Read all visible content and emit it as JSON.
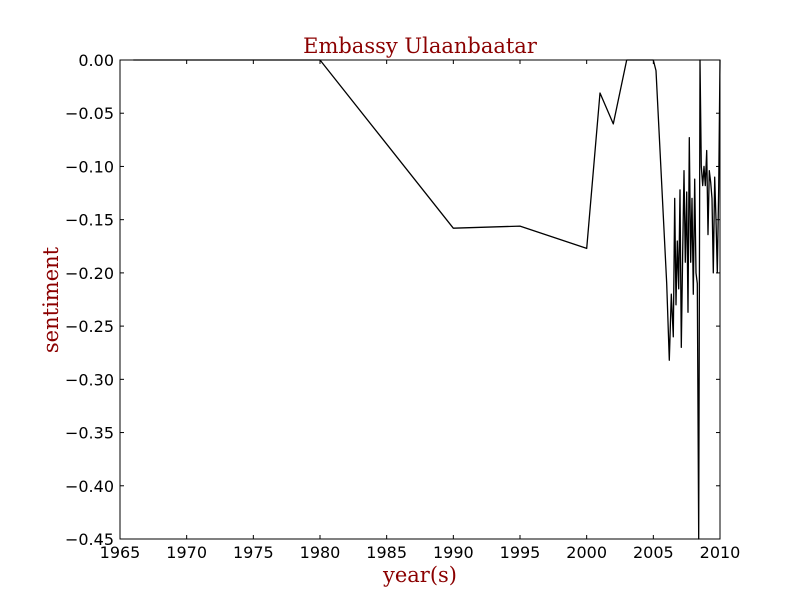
{
  "chart_data": {
    "type": "line",
    "title": "Embassy Ulaanbaatar",
    "xlabel": "year(s)",
    "ylabel": "sentiment",
    "xlim": [
      1965,
      2010
    ],
    "ylim": [
      -0.45,
      0.0
    ],
    "x_ticks": [
      1965,
      1970,
      1975,
      1980,
      1985,
      1990,
      1995,
      2000,
      2005,
      2010
    ],
    "x_tick_labels": [
      "1965",
      "1970",
      "1975",
      "1980",
      "1985",
      "1990",
      "1995",
      "2000",
      "2005",
      "2010"
    ],
    "y_ticks": [
      0.0,
      -0.05,
      -0.1,
      -0.15,
      -0.2,
      -0.25,
      -0.3,
      -0.35,
      -0.4,
      -0.45
    ],
    "y_tick_labels": [
      "0.00",
      "−0.05",
      "−0.10",
      "−0.15",
      "−0.20",
      "−0.25",
      "−0.30",
      "−0.35",
      "−0.40",
      "−0.45"
    ],
    "grid": false,
    "colors": {
      "title": "#8b0000",
      "axis_label": "#8b0000",
      "line": "#000000"
    },
    "series": [
      {
        "x": [
          1966,
          1980,
          1990,
          1995,
          2000,
          2001,
          2002,
          2003,
          2005,
          2005.2,
          2006,
          2006.2,
          2006.35,
          2006.5,
          2006.6,
          2006.7,
          2006.8,
          2006.9,
          2007.0,
          2007.1,
          2007.2,
          2007.3,
          2007.4,
          2007.5,
          2007.6,
          2007.7,
          2007.8,
          2007.9,
          2008.0,
          2008.1,
          2008.2,
          2008.3,
          2008.4,
          2008.5,
          2008.6,
          2008.7,
          2008.8,
          2008.9,
          2009.0,
          2009.1,
          2009.2,
          2009.3,
          2009.4,
          2009.5,
          2009.6,
          2009.7,
          2009.8,
          2009.9,
          2010.0
        ],
        "y": [
          0.0,
          0.0,
          -0.158,
          -0.156,
          -0.177,
          -0.031,
          -0.06,
          0.0,
          0.0,
          -0.01,
          -0.21,
          -0.282,
          -0.22,
          -0.26,
          -0.13,
          -0.23,
          -0.17,
          -0.215,
          -0.122,
          -0.27,
          -0.18,
          -0.104,
          -0.19,
          -0.124,
          -0.237,
          -0.073,
          -0.19,
          -0.13,
          -0.22,
          -0.112,
          -0.2,
          -0.21,
          -0.45,
          0.0,
          -0.1,
          -0.118,
          -0.1,
          -0.118,
          -0.085,
          -0.164,
          -0.104,
          -0.115,
          -0.13,
          -0.2,
          -0.11,
          -0.15,
          -0.2,
          -0.12,
          0.0
        ]
      }
    ]
  }
}
